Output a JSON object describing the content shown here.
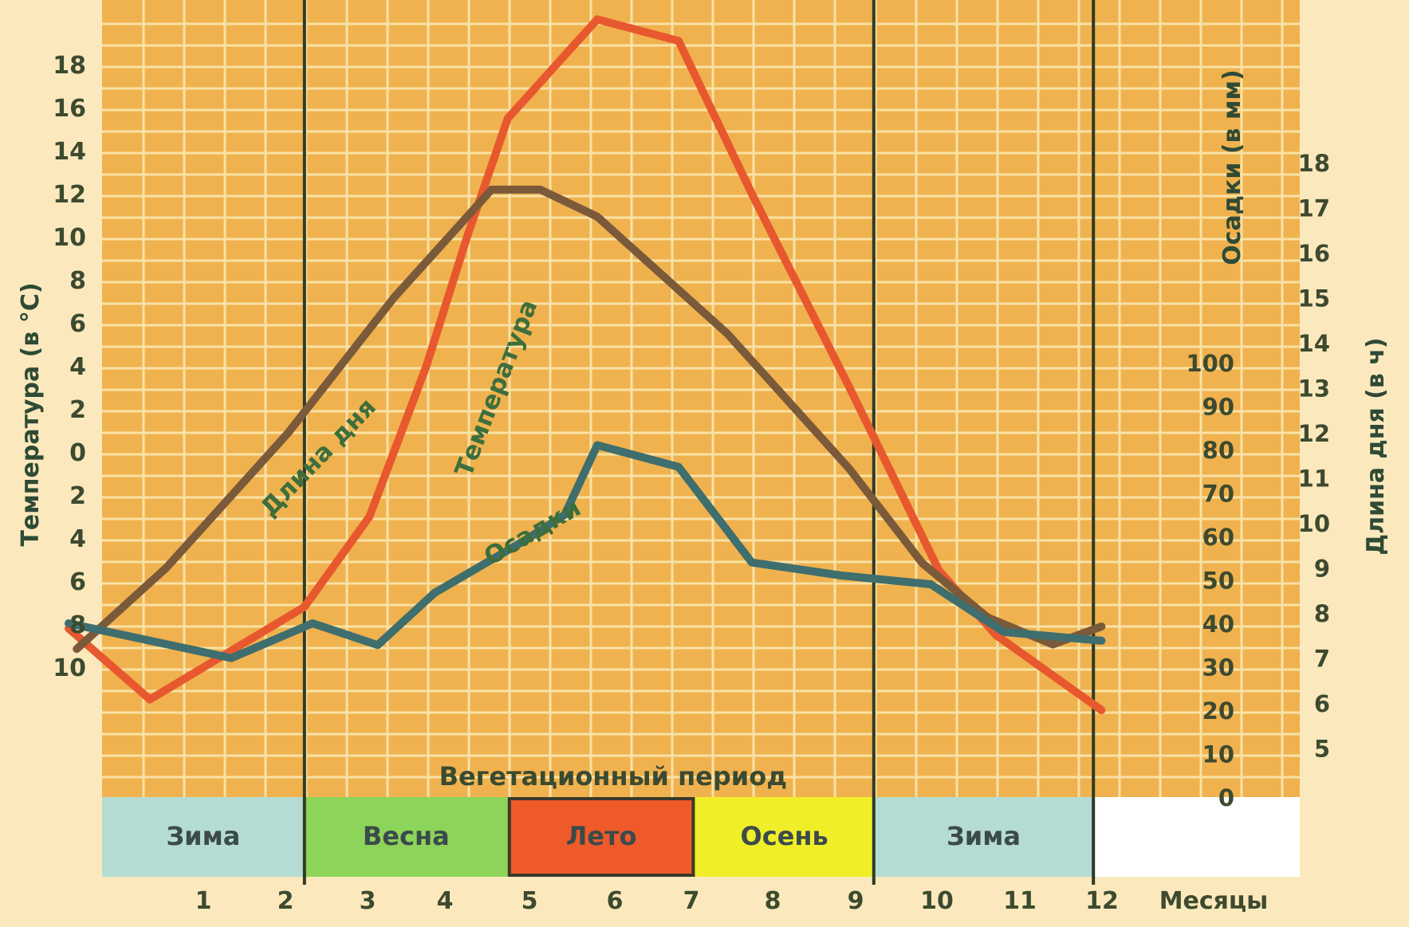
{
  "chart_data": {
    "type": "line",
    "xlabel": "Месяцы",
    "months": [
      "1",
      "2",
      "3",
      "4",
      "5",
      "6",
      "7",
      "8",
      "9",
      "10",
      "11",
      "12"
    ],
    "axes": {
      "temperature": {
        "label": "Температура (в °С)",
        "ticks": [
          "18",
          "16",
          "14",
          "12",
          "10",
          "8",
          "6",
          "4",
          "2",
          "0",
          "2",
          "4",
          "6",
          "8",
          "10"
        ],
        "tick_values": [
          18,
          16,
          14,
          12,
          10,
          8,
          6,
          4,
          2,
          0,
          -2,
          -4,
          -6,
          -8,
          -10
        ],
        "range": [
          -12,
          20
        ]
      },
      "precipitation": {
        "label": "Осадки (в мм)",
        "ticks": [
          "100",
          "90",
          "80",
          "70",
          "60",
          "50",
          "40",
          "30",
          "20",
          "10",
          "0"
        ],
        "tick_values": [
          100,
          90,
          80,
          70,
          60,
          50,
          40,
          30,
          20,
          10,
          0
        ],
        "range": [
          0,
          185
        ]
      },
      "day_length": {
        "label": "Длина дня (в ч)",
        "ticks": [
          "18",
          "17",
          "16",
          "15",
          "14",
          "13",
          "12",
          "11",
          "10",
          "9",
          "8",
          "7",
          "6",
          "5"
        ],
        "tick_values": [
          18,
          17,
          16,
          15,
          14,
          13,
          12,
          11,
          10,
          9,
          8,
          7,
          6,
          5
        ],
        "range": [
          3.4,
          20.4
        ]
      }
    },
    "series": [
      {
        "name": "Температура",
        "axis": "temperature",
        "color": "#e8582e",
        "x": [
          0.5,
          1.5,
          3.4,
          4.2,
          4.9,
          5.4,
          5.9,
          7.0,
          8.0,
          8.9,
          10.1,
          11.2,
          11.9,
          13.2
        ],
        "y": [
          -8.2,
          -11.5,
          -7.2,
          -3.0,
          4.0,
          10.0,
          15.5,
          20.1,
          19.1,
          12.0,
          3.0,
          -5.5,
          -8.5,
          -12.0
        ]
      },
      {
        "name": "Длина дня",
        "axis": "day_length",
        "color": "#7b5a3a",
        "x": [
          0.6,
          1.7,
          3.2,
          4.5,
          5.7,
          6.3,
          7.0,
          8.6,
          10.1,
          11.0,
          11.8,
          12.6,
          13.2
        ],
        "y": [
          7.2,
          9.0,
          12.0,
          15.0,
          17.4,
          17.4,
          16.8,
          14.2,
          11.2,
          9.1,
          7.9,
          7.3,
          7.7
        ]
      },
      {
        "name": "Осадки",
        "axis": "precipitation",
        "color": "#3e6e6e",
        "x": [
          0.5,
          2.5,
          3.5,
          4.3,
          5.0,
          6.1,
          6.6,
          7.0,
          8.0,
          8.9,
          10.0,
          11.1,
          12.0,
          13.2
        ],
        "y": [
          40,
          32,
          40,
          35,
          47,
          59,
          65,
          81,
          76,
          54,
          51,
          49,
          38,
          36
        ]
      }
    ],
    "seasons": [
      {
        "label": "Зима",
        "color": "#b5dcd4"
      },
      {
        "label": "Весна",
        "color": "#8cd45a"
      },
      {
        "label": "Лето",
        "color": "#ee5a2a"
      },
      {
        "label": "Осень",
        "color": "#f0ee28"
      },
      {
        "label": "Зима",
        "color": "#b5dcd4"
      }
    ],
    "season_bounds": [
      [
        0,
        3.4
      ],
      [
        3.4,
        5.9
      ],
      [
        5.9,
        8.2
      ],
      [
        8.2,
        10.4
      ],
      [
        10.4,
        13.1
      ]
    ],
    "vegetation_period": {
      "label": "Вегетационный период",
      "range": [
        3.4,
        10.4
      ]
    },
    "background_color": "#f0b24e",
    "grid_color": "#f8e2a6"
  }
}
